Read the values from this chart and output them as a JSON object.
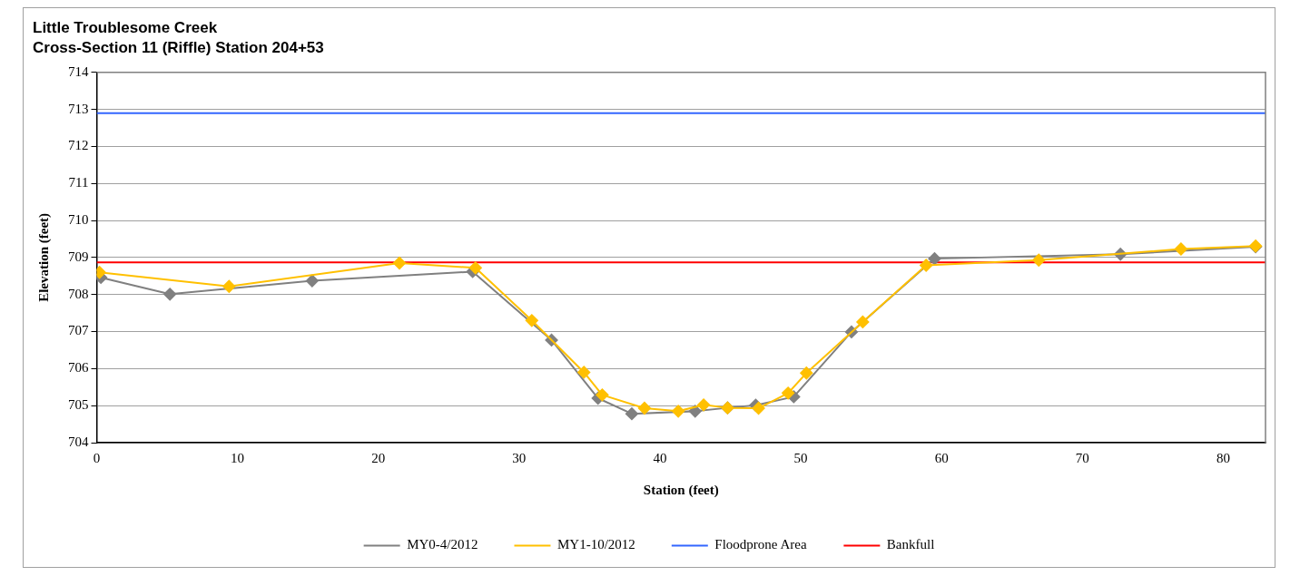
{
  "chart_data": {
    "type": "line",
    "title": "Little Troublesome Creek",
    "subtitle": "Cross-Section 11 (Riffle) Station 204+53",
    "xlabel": "Station (feet)",
    "ylabel": "Elevation (feet)",
    "xlim": [
      0,
      83
    ],
    "xticks": [
      0,
      10,
      20,
      30,
      40,
      50,
      60,
      70,
      80
    ],
    "ylim": [
      704,
      714
    ],
    "yticks": [
      704,
      705,
      706,
      707,
      708,
      709,
      710,
      711,
      712,
      713,
      714
    ],
    "series": [
      {
        "name": "MY0-4/2012",
        "color": "#808080",
        "x": [
          0.3,
          5.2,
          15.3,
          26.7,
          32.3,
          35.6,
          38.0,
          42.5,
          44.8,
          46.8,
          49.5,
          53.6,
          59.5,
          72.7,
          82.3
        ],
        "values": [
          708.46,
          708.01,
          708.37,
          708.62,
          706.77,
          705.2,
          704.78,
          704.85,
          704.94,
          705.01,
          705.24,
          706.99,
          708.97,
          709.09,
          709.29
        ]
      },
      {
        "name": "MY1-10/2012",
        "color": "#ffc000",
        "x": [
          0.2,
          9.4,
          21.5,
          26.9,
          30.9,
          34.6,
          35.9,
          38.9,
          41.3,
          43.1,
          44.8,
          47.0,
          49.1,
          50.4,
          54.4,
          58.9,
          66.9,
          77.0,
          82.3
        ],
        "values": [
          708.6,
          708.22,
          708.85,
          708.72,
          707.3,
          705.9,
          705.29,
          704.93,
          704.85,
          705.02,
          704.94,
          704.93,
          705.34,
          705.88,
          707.26,
          708.79,
          708.93,
          709.23,
          709.31
        ]
      }
    ],
    "ref_lines": [
      {
        "axis": "y",
        "value": 712.9,
        "label": "Floodprone Area",
        "color": "#3366ff"
      },
      {
        "axis": "y",
        "value": 708.87,
        "label": "Bankfull",
        "color": "#ff0000"
      }
    ],
    "marker": "diamond",
    "grid": "y",
    "legend": "bottom"
  }
}
